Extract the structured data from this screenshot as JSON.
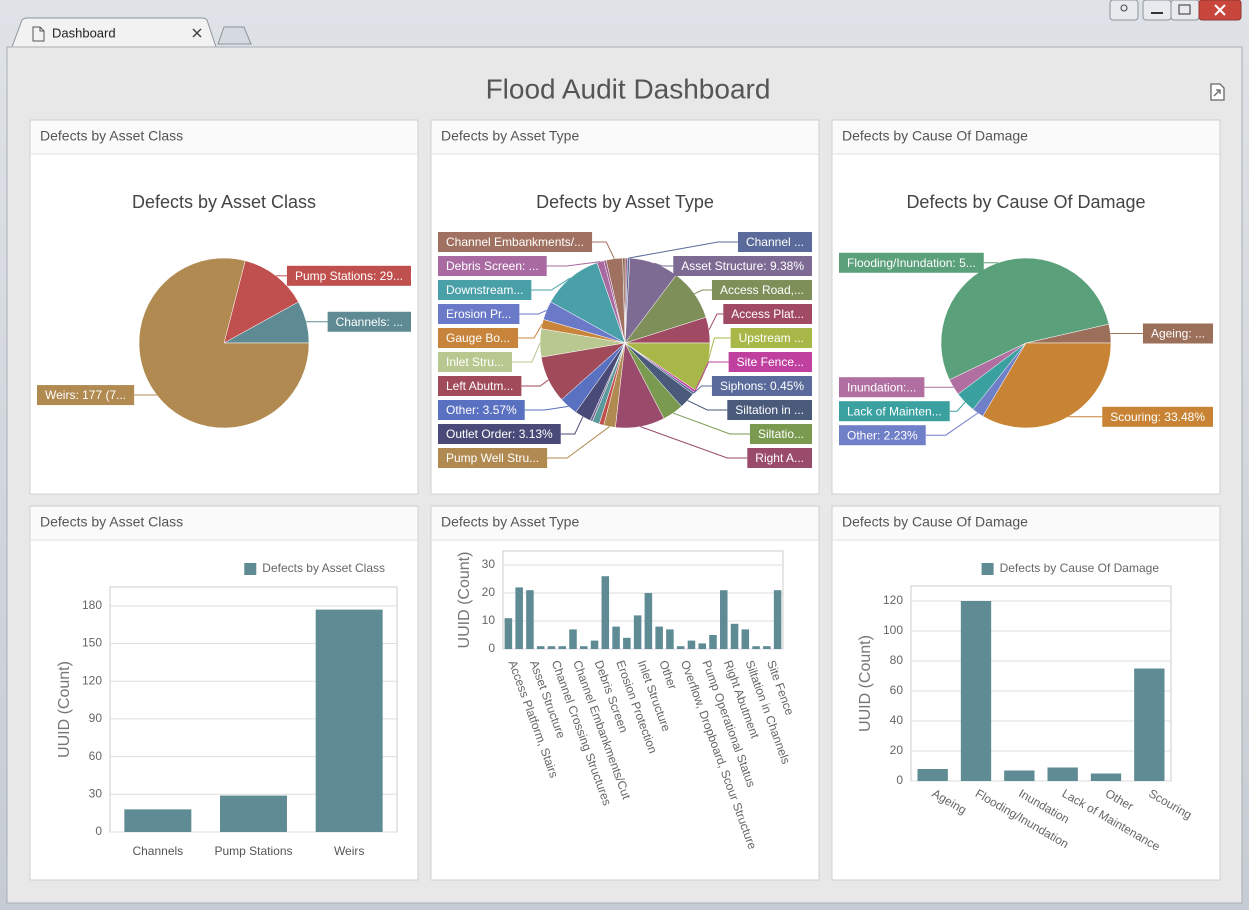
{
  "tab": "Dashboard",
  "title": "Flood Audit Dashboard",
  "chart_data": [
    {
      "panel": "Defects by Asset Class",
      "type": "pie",
      "title": "Defects by Asset Class",
      "values": [
        18,
        29,
        177
      ],
      "value_labels": [
        "Channels: ...",
        "Pump Stations: 29...",
        "Weirs: 177 (7..."
      ],
      "colors": [
        "#5d8a93",
        "#c0504d",
        "#b08a50"
      ]
    },
    {
      "panel": "Defects by Asset Type",
      "type": "pie",
      "title": "Defects by Asset Type",
      "values": [
        4.91,
        9.82,
        9.38,
        0.45,
        0.45,
        0.45,
        3.13,
        0.45,
        1.34,
        11.61,
        3.57,
        1.79,
        5.36,
        8.93,
        3.57,
        3.13,
        0.45,
        1.34,
        0.89,
        2.23,
        9.38,
        4.02,
        3.13,
        0.45,
        0.45,
        9.38
      ],
      "value_labels": [
        "Access Plat...",
        "Access Road,...",
        "Asset Structure: 9.38%",
        "Channel ...",
        null,
        null,
        "Channel Embankments/...",
        null,
        "Debris Screen: ...",
        "Downstream...",
        "Erosion Pr...",
        "Gauge Bo...",
        "Inlet Stru...",
        "Left Abutm...",
        "Other: 3.57%",
        "Outlet Order: 3.13%",
        null,
        null,
        null,
        "Pump Well Stru...",
        "Right A...",
        "Siltatio...",
        "Siltation in ...",
        "Siphons: 0.45%",
        "Site Fence...",
        "Upstream ..."
      ],
      "colors": [
        "#a04a63",
        "#7f8f5a",
        "#7d6b94",
        "#5a6a9a",
        "#a06080",
        "#8a6a50",
        "#a07060",
        "#9a5a8a",
        "#a86aa0",
        "#4aa0a8",
        "#6a7ac8",
        "#c8843a",
        "#b8c890",
        "#a04a5a",
        "#5a70c0",
        "#4a4a78",
        "#7a6a9a",
        "#5a9a9a",
        "#c0504d",
        "#b08a50",
        "#9a4a6a",
        "#7a9a50",
        "#4a5a7a",
        "#5a6a9a",
        "#c040a0",
        "#a8b848"
      ]
    },
    {
      "panel": "Defects by Cause Of Damage",
      "type": "pie",
      "title": "Defects by Cause Of Damage",
      "values": [
        3.57,
        53.57,
        3.13,
        4.02,
        2.23,
        33.48
      ],
      "value_labels": [
        "Ageing: ...",
        "Flooding/Inundation: 5...",
        "Inundation:...",
        "Lack of Mainten...",
        "Other: 2.23%",
        "Scouring: 33.48%"
      ],
      "colors": [
        "#9b6f5a",
        "#5aa07a",
        "#b06fa0",
        "#3aa0a0",
        "#6f7fc8",
        "#c88434"
      ]
    },
    {
      "panel": "Defects by Asset Class",
      "type": "bar",
      "ylabel": "UUID (Count)",
      "categories": [
        "Channels",
        "Pump Stations",
        "Weirs"
      ],
      "series": [
        {
          "name": "Defects by Asset Class",
          "color": "#5f8b95",
          "values": [
            18,
            29,
            177
          ]
        }
      ],
      "ylim": [
        0,
        195
      ],
      "yticks": [
        0,
        30,
        60,
        90,
        120,
        150,
        180
      ],
      "grid": true,
      "legend": "top-right"
    },
    {
      "panel": "Defects by Asset Type",
      "type": "bar",
      "ylabel": "UUID (Count)",
      "categories": [
        "Access Platform, Stairs",
        null,
        "Asset Structure",
        null,
        "Channel Crossing Structures",
        null,
        "Channel Embankments/Cut",
        null,
        "Debris Screen",
        null,
        "Erosion Protection",
        null,
        "Inlet Structure",
        null,
        "Other",
        null,
        "Overflow, Dropboard, Scour Structure",
        null,
        "Pump Operational Status",
        null,
        "Right Abutment",
        null,
        "Siltation in Channels",
        null,
        "Site Fence",
        null
      ],
      "values": [
        11,
        22,
        21,
        1,
        1,
        1,
        7,
        1,
        3,
        26,
        8,
        4,
        12,
        20,
        8,
        7,
        1,
        3,
        2,
        5,
        21,
        9,
        7,
        1,
        1,
        21
      ],
      "color": "#5f8b95",
      "ylim": [
        0,
        35
      ],
      "yticks": [
        0,
        10,
        20,
        30
      ],
      "grid": true
    },
    {
      "panel": "Defects by Cause Of Damage",
      "type": "bar",
      "ylabel": "UUID (Count)",
      "categories": [
        "Ageing",
        "Flooding/Inundation",
        "Inundation",
        "Lack of Maintenance",
        "Other",
        "Scouring"
      ],
      "series": [
        {
          "name": "Defects by Cause Of Damage",
          "color": "#5f8b95",
          "values": [
            8,
            120,
            7,
            9,
            5,
            75
          ]
        }
      ],
      "ylim": [
        0,
        130
      ],
      "yticks": [
        0,
        20,
        40,
        60,
        80,
        100,
        120
      ],
      "grid": true,
      "legend": "top-right"
    }
  ]
}
